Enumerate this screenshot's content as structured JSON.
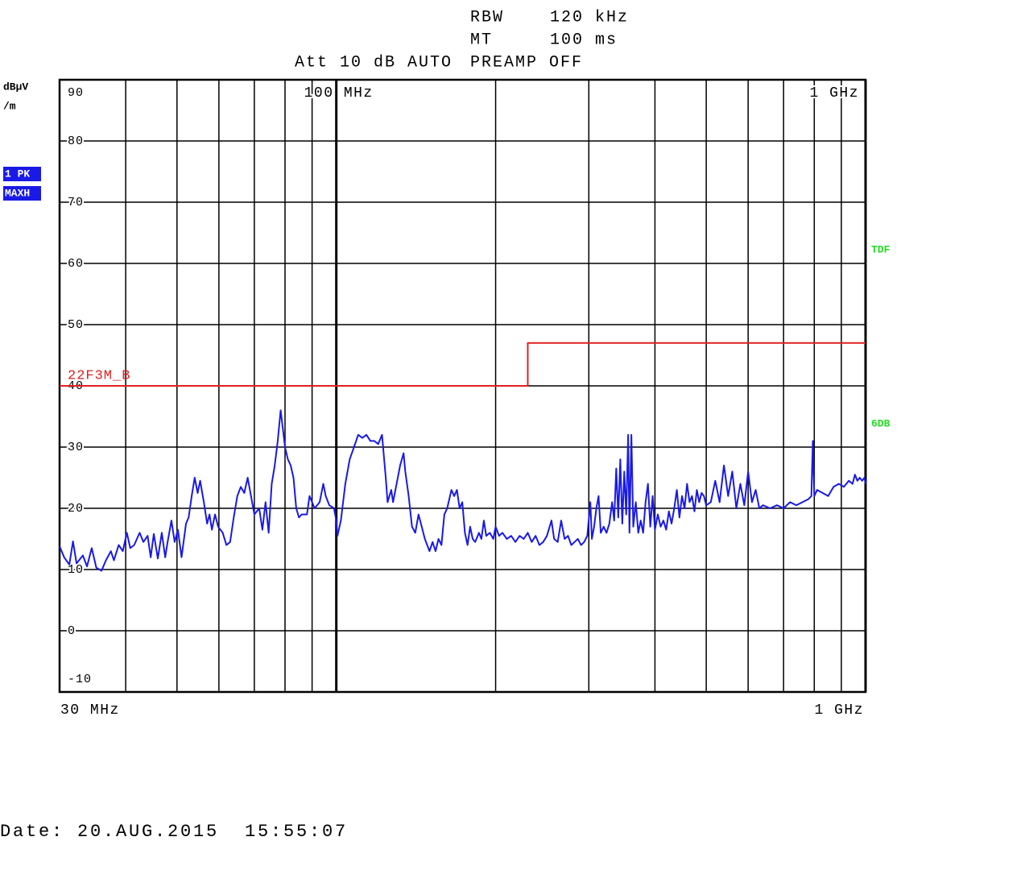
{
  "header": {
    "rbw_label": "RBW",
    "rbw": "120 kHz",
    "mt_label": "MT",
    "mt": "100 ms",
    "att": "Att 10 dB AUTO",
    "preamp": "PREAMP OFF"
  },
  "chart_data": {
    "type": "line",
    "ylabel": [
      "dBµV",
      "/m"
    ],
    "trace_labels": [
      "1 PK",
      "MAXH"
    ],
    "side_labels": [
      "TDF",
      "6DB"
    ],
    "xscale": "log",
    "grid": true,
    "xlim": [
      30,
      1000
    ],
    "ylim": [
      -10,
      90
    ],
    "yticks": [
      -10,
      0,
      10,
      20,
      30,
      40,
      50,
      60,
      70,
      80,
      90
    ],
    "xgrid": [
      40,
      50,
      60,
      70,
      80,
      90,
      200,
      300,
      400,
      500,
      600,
      700,
      800,
      900
    ],
    "xticks": [
      {
        "value": 30,
        "label": "30 MHz"
      },
      {
        "value": 1000,
        "label": "1 GHz"
      }
    ],
    "xticks_top": [
      {
        "value": 100,
        "label": "100 MHz"
      },
      {
        "value": 1000,
        "label": "1 GHz"
      }
    ],
    "series": [
      {
        "name": "22F3M_B",
        "color": "#e02020",
        "x": [
          30,
          230,
          230,
          1000
        ],
        "values": [
          40,
          40,
          47,
          47
        ]
      },
      {
        "color": "#1a1ae6",
        "x": [
          30,
          30.6,
          31.3,
          31.8,
          32.3,
          33.2,
          33.8,
          34.5,
          35.2,
          36,
          36.7,
          37.5,
          38,
          38.8,
          39.5,
          40.2,
          40.8,
          41.5,
          42.5,
          43.2,
          44,
          44.6,
          45.2,
          46,
          46.8,
          47.5,
          48,
          48.8,
          49.5,
          50.2,
          51,
          52,
          52.6,
          53.3,
          54,
          54.7,
          55.3,
          56.2,
          57,
          57.6,
          58.2,
          59,
          59.8,
          61,
          62,
          63,
          64,
          65,
          66,
          67,
          68,
          69,
          70,
          71.5,
          72.5,
          73.5,
          74.5,
          75.5,
          76.5,
          77.5,
          78.5,
          79,
          80,
          81,
          82,
          83,
          84,
          85,
          86,
          88,
          89,
          90,
          91,
          93,
          94.5,
          95.5,
          97,
          99,
          100,
          100.5,
          102,
          104,
          106,
          108,
          110,
          112,
          114,
          116,
          118,
          120,
          122,
          124,
          125,
          127,
          128,
          130,
          132,
          134,
          135,
          137,
          139,
          141,
          143,
          145,
          147,
          150,
          152,
          154,
          156,
          158,
          160,
          162,
          165,
          167,
          169,
          171,
          173,
          175,
          177,
          179,
          181,
          183,
          186,
          188,
          190,
          192,
          195,
          198,
          200,
          203,
          206,
          210,
          214,
          218,
          222,
          226,
          230,
          234,
          238,
          242,
          246,
          250,
          255,
          258,
          262,
          266,
          270,
          274,
          278,
          282,
          286,
          290,
          294,
          298,
          302,
          304,
          307,
          310,
          313,
          316,
          320,
          324,
          328,
          332,
          335,
          338,
          341,
          344,
          347,
          350,
          353,
          356,
          358,
          361,
          364,
          368,
          372,
          376,
          380,
          384,
          388,
          392,
          396,
          400,
          405,
          410,
          415,
          420,
          425,
          430,
          435,
          440,
          445,
          450,
          455,
          460,
          465,
          470,
          475,
          480,
          485,
          490,
          495,
          500,
          510,
          520,
          530,
          540,
          550,
          560,
          570,
          580,
          590,
          600,
          610,
          620,
          630,
          640,
          660,
          680,
          700,
          720,
          740,
          760,
          780,
          790,
          795,
          800,
          810,
          830,
          850,
          870,
          890,
          910,
          930,
          945,
          955,
          965,
          975,
          985,
          995,
          1000
        ],
        "values": [
          13.8,
          12,
          10.8,
          14.6,
          11,
          12.3,
          10.5,
          13.5,
          10.3,
          9.8,
          11.5,
          13,
          11.5,
          14,
          13,
          16,
          13.5,
          14,
          16,
          14.5,
          15.5,
          12,
          15.8,
          11.8,
          16,
          12,
          14.5,
          18,
          14.5,
          16.5,
          12,
          17.5,
          18.5,
          22,
          25,
          22.5,
          24.5,
          21,
          17.5,
          19,
          16.5,
          19,
          17,
          16,
          14,
          14.5,
          18.5,
          22,
          23.5,
          22.5,
          25,
          22,
          19,
          20,
          16.5,
          21,
          16,
          24,
          27,
          31,
          36,
          34,
          30,
          28,
          27,
          25,
          20,
          18.5,
          19,
          19,
          22,
          21,
          20,
          21,
          24,
          22,
          20.5,
          20,
          18,
          15.5,
          18,
          24,
          28,
          30,
          32,
          31.5,
          32,
          31,
          31,
          30.5,
          32,
          25,
          21,
          23,
          21,
          24,
          27,
          29,
          26,
          22,
          17,
          16,
          19,
          17,
          15,
          13,
          14.5,
          13,
          15,
          14,
          19,
          20,
          23,
          22,
          23,
          20,
          21,
          16,
          14,
          17,
          15,
          14.5,
          16,
          15,
          18,
          15.5,
          16,
          15,
          17,
          15.5,
          16,
          15,
          15.5,
          14.5,
          15.5,
          15,
          16,
          14.5,
          15.5,
          14,
          14.5,
          15.5,
          18,
          15,
          14.5,
          18,
          15,
          15.5,
          14,
          14.5,
          15,
          14,
          14.5,
          15.5,
          21,
          15,
          17,
          20,
          22,
          16,
          17,
          16,
          17.5,
          21,
          18,
          26.5,
          18.5,
          28,
          17.5,
          26,
          19,
          32,
          16,
          32,
          17,
          21,
          16,
          18,
          16,
          21,
          24,
          17,
          22,
          16.5,
          19,
          17,
          18,
          16.5,
          19.5,
          17.5,
          20,
          23,
          18.5,
          22,
          20,
          24,
          21,
          22,
          19.5,
          23,
          21,
          22.5,
          22,
          20.5,
          21,
          24.5,
          21,
          27,
          22,
          26,
          20,
          24,
          20.5,
          26,
          21,
          23,
          20,
          20.5,
          20,
          20.5,
          20,
          21,
          20.5,
          21,
          21.5,
          22,
          31,
          22,
          23,
          22.5,
          22,
          23.5,
          24,
          23.5,
          24.5,
          24,
          25.5,
          24.5,
          25,
          24.5,
          25,
          24
        ]
      }
    ]
  },
  "date": "Date: 20.AUG.2015  15:55:07"
}
